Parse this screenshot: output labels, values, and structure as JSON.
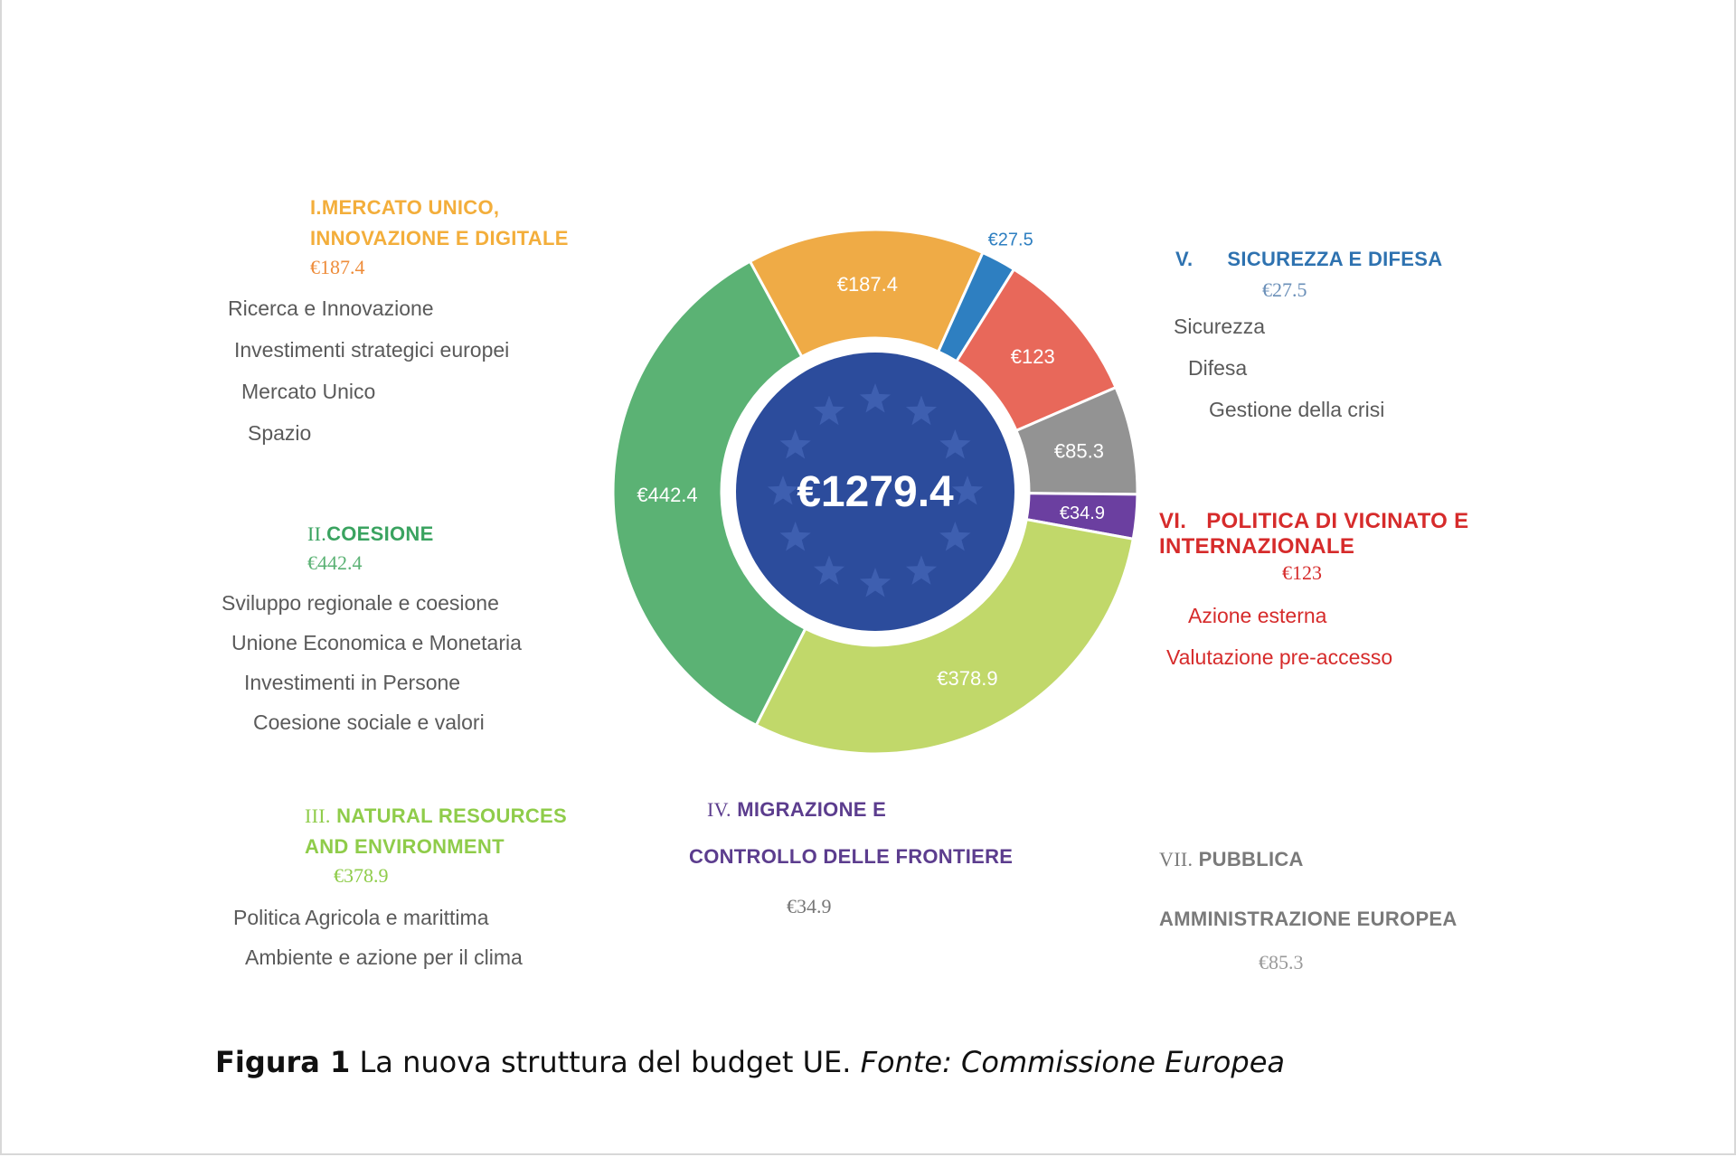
{
  "chart_data": {
    "type": "pie",
    "style": "donut",
    "center_label": "€1279.4",
    "slices": [
      {
        "label": "€442.4",
        "value": 442.4,
        "color": "#5bb274"
      },
      {
        "label": "€187.4",
        "value": 187.4,
        "color": "#efab46"
      },
      {
        "label": "€27.5",
        "value": 27.5,
        "color": "#2e7fc1"
      },
      {
        "label": "€123",
        "value": 123,
        "color": "#e8685a"
      },
      {
        "label": "€85.3",
        "value": 85.3,
        "color": "#939393"
      },
      {
        "label": "€34.9",
        "value": 34.9,
        "color": "#6b3fa0"
      },
      {
        "label": "€378.9",
        "value": 378.9,
        "color": "#c1d86a"
      }
    ]
  },
  "colors": {
    "center_disc": "#2c4c9c",
    "star": "#3e5fb0"
  },
  "headings": {
    "h1": {
      "roman": "I.",
      "title_line1": "MERCATO UNICO,",
      "title_line2": "INNOVAZIONE E DIGITALE",
      "amount": "€187.4",
      "color": "#f3ae3b",
      "amount_color": "#ee8c3a",
      "items": [
        "Ricerca e Innovazione",
        "Investimenti strategici europei",
        "Mercato Unico",
        "Spazio"
      ]
    },
    "h2": {
      "roman": "II.",
      "title": "COESIONE",
      "amount": "€442.4",
      "color": "#3aa360",
      "amount_color": "#5bb274",
      "items": [
        "Sviluppo regionale e coesione",
        "Unione Economica e Monetaria",
        "Investimenti in Persone",
        "Coesione sociale e valori"
      ]
    },
    "h3": {
      "roman": "III.",
      "title_line1": "NATURAL RESOURCES",
      "title_line2": "AND ENVIRONMENT",
      "amount": "€378.9",
      "color": "#8fcc4a",
      "amount_color": "#8fcc4a",
      "items": [
        "Politica Agricola e marittima",
        "Ambiente e azione per il clima"
      ]
    },
    "h4": {
      "roman": "IV.",
      "title_line1": "MIGRAZIONE E",
      "title_line2": "CONTROLLO DELLE FRONTIERE",
      "amount": "€34.9",
      "color": "#5c3d8e",
      "amount_color": "#777777"
    },
    "h5": {
      "roman": "V.",
      "title": "SICUREZZA E DIFESA",
      "amount": "€27.5",
      "color": "#2e72b0",
      "amount_color": "#6a8fb8",
      "items": [
        "Sicurezza",
        "Difesa",
        "Gestione della crisi"
      ]
    },
    "h6": {
      "roman": "VI.",
      "title_line1": "POLITICA DI VICINATO E",
      "title_line2": "INTERNAZIONALE",
      "amount": "€123",
      "color": "#d62b2b",
      "amount_color": "#d62b2b",
      "items": [
        "Azione esterna",
        "Valutazione pre-accesso"
      ]
    },
    "h7": {
      "roman": "VII.",
      "title_line1": "PUBBLICA",
      "title_line2": "AMMINISTRAZIONE EUROPEA",
      "amount": "€85.3",
      "color": "#7a7a7a",
      "amount_color": "#9a9a9a"
    }
  },
  "caption": {
    "bold": "Figura 1",
    "text": " La nuova struttura del budget UE. ",
    "italic": "Fonte: Commissione Europea"
  }
}
